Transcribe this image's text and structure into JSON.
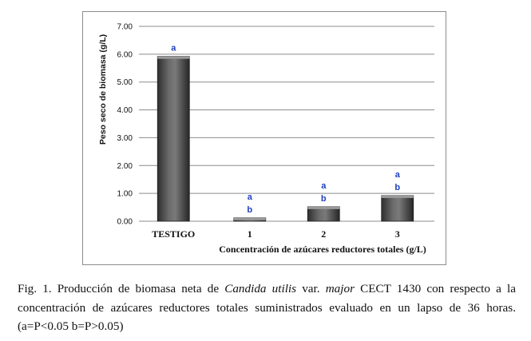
{
  "chart_data": {
    "type": "bar",
    "categories": [
      "TESTIGO",
      "1",
      "2",
      "3"
    ],
    "values": [
      5.92,
      0.12,
      0.52,
      0.92
    ],
    "significance": [
      [
        "a"
      ],
      [
        "a",
        "b"
      ],
      [
        "a",
        "b"
      ],
      [
        "a",
        "b"
      ]
    ],
    "ylabel": "Peso seco de biomasa  (g/L)",
    "xlabel": "Concentración de azúcares reductores totales (g/L)",
    "ylim": [
      0,
      7
    ],
    "yticks": [
      "0.00",
      "1.00",
      "2.00",
      "3.00",
      "4.00",
      "5.00",
      "6.00",
      "7.00"
    ],
    "grid": true,
    "colors": {
      "bar": "#555555",
      "grid": "#8c8c8c",
      "label": "#1f3fbf"
    }
  },
  "caption": {
    "prefix": "Fig. 1. Producción de biomasa neta de ",
    "species": "Candida utilis",
    "var_text": " var. ",
    "variety": "major",
    "rest": " CECT 1430 con respecto a la concentración de azúcares reductores totales suministrados evaluado en un lapso de 36 horas. (a=P<0.05  b=P>0.05)"
  }
}
